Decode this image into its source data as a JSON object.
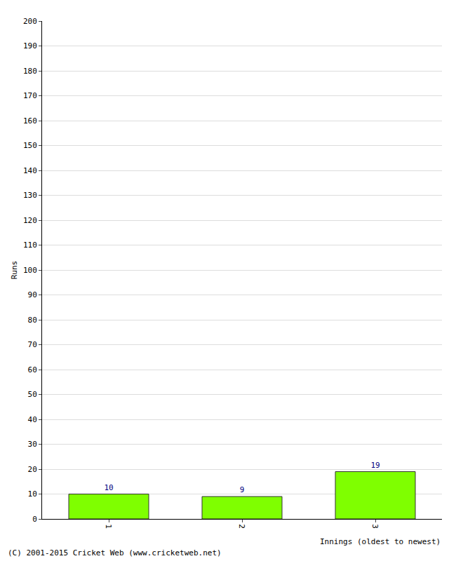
{
  "chart_data": {
    "type": "bar",
    "categories": [
      "1",
      "2",
      "3"
    ],
    "values": [
      10,
      9,
      19
    ],
    "color": "#7fff00",
    "x_label": "Innings (oldest to newest)",
    "y_label": "Runs",
    "footer": "(C) 2001-2015 Cricket Web (www.cricketweb.net)",
    "ylim": [
      0,
      200
    ],
    "yticks": [
      0,
      10,
      20,
      30,
      40,
      50,
      60,
      70,
      80,
      90,
      100,
      110,
      120,
      130,
      140,
      150,
      160,
      170,
      180,
      190,
      200
    ],
    "grid": true,
    "data_labels": true
  }
}
